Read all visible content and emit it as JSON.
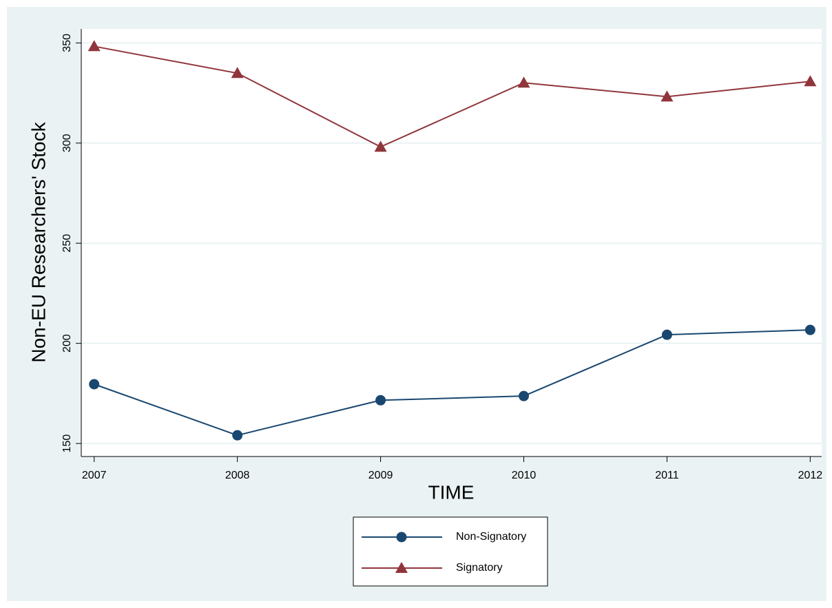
{
  "chart_data": {
    "type": "line",
    "x_label": "TIME",
    "y_label": "Non-EU Researchers' Stock",
    "x": [
      2007,
      2008,
      2009,
      2010,
      2011,
      2012
    ],
    "series": [
      {
        "name": "Non-Signatory",
        "color": "#1a476f",
        "marker": "circle",
        "values": [
          179.6,
          154.1,
          171.6,
          173.7,
          204.3,
          206.7
        ]
      },
      {
        "name": "Signatory",
        "color": "#90353b",
        "marker": "triangle",
        "values": [
          348.3,
          334.9,
          298.1,
          330.1,
          323.2,
          330.8
        ]
      }
    ],
    "xlim": [
      2006.91,
      2012.08
    ],
    "xticks": [
      2007,
      2008,
      2009,
      2010,
      2011,
      2012
    ],
    "ylim": [
      143.5,
      357
    ],
    "yticks": [
      150,
      200,
      250,
      300,
      350
    ],
    "grid": true,
    "legend": "bottom"
  }
}
